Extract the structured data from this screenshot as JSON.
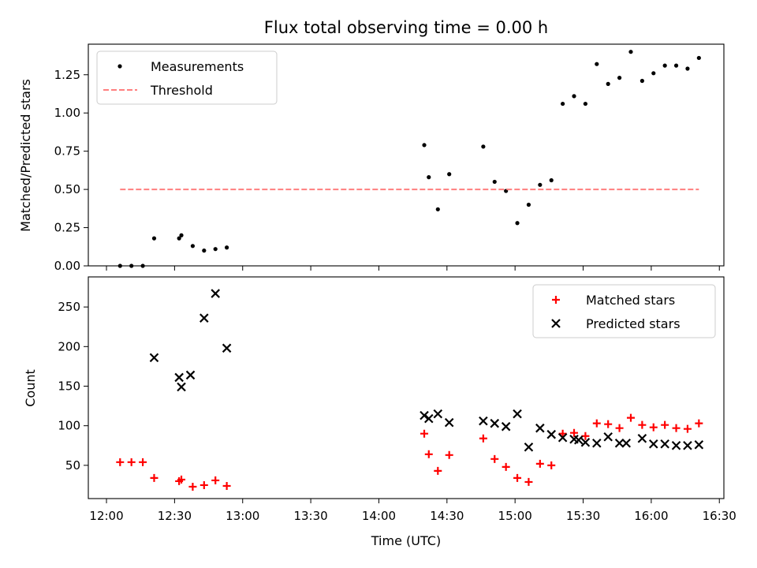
{
  "title": "Flux total observing time = 0.00 h",
  "colors": {
    "measurements": "#000000",
    "threshold": "#ff7f7f",
    "matched": "#ff0000",
    "predicted": "#000000"
  },
  "chart_data": [
    {
      "type": "scatter",
      "title": "Flux total observing time = 0.00 h",
      "xlabel": "",
      "ylabel": "Matched/Predicted stars",
      "xlim": [
        "11:52",
        "16:32"
      ],
      "ylim": [
        0,
        1.45
      ],
      "yticks": [
        "0.00",
        "0.25",
        "0.50",
        "0.75",
        "1.00",
        "1.25"
      ],
      "legend": {
        "placement": "top-left",
        "entries": [
          "Measurements",
          "Threshold"
        ]
      },
      "series": [
        {
          "name": "Measurements",
          "marker": "dot",
          "x": [
            "12:06",
            "12:11",
            "12:16",
            "12:21",
            "12:32",
            "12:33",
            "12:38",
            "12:43",
            "12:48",
            "12:53",
            "14:20",
            "14:22",
            "14:26",
            "14:31",
            "14:46",
            "14:51",
            "14:56",
            "15:01",
            "15:06",
            "15:11",
            "15:16",
            "15:21",
            "15:26",
            "15:31",
            "15:36",
            "15:41",
            "15:46",
            "15:51",
            "15:56",
            "16:01",
            "16:06",
            "16:11",
            "16:16",
            "16:21"
          ],
          "values": [
            0.0,
            0.0,
            0.0,
            0.18,
            0.18,
            0.2,
            0.13,
            0.1,
            0.11,
            0.12,
            0.79,
            0.58,
            0.37,
            0.6,
            0.78,
            0.55,
            0.49,
            0.28,
            0.4,
            0.53,
            0.56,
            1.06,
            1.11,
            1.06,
            1.32,
            1.19,
            1.23,
            1.4,
            1.21,
            1.26,
            1.31,
            1.31,
            1.29,
            1.36
          ]
        },
        {
          "name": "Threshold",
          "style": "dashed",
          "x": [
            "12:06",
            "16:21"
          ],
          "values": [
            0.5,
            0.5
          ]
        }
      ]
    },
    {
      "type": "scatter",
      "xlabel": "Time (UTC)",
      "ylabel": "Count",
      "xlim": [
        "11:52",
        "16:32"
      ],
      "ylim": [
        8,
        288
      ],
      "yticks": [
        "50",
        "100",
        "150",
        "200",
        "250"
      ],
      "xticks": [
        "12:00",
        "12:30",
        "13:00",
        "13:30",
        "14:00",
        "14:30",
        "15:00",
        "15:30",
        "16:00",
        "16:30"
      ],
      "legend": {
        "placement": "top-right",
        "entries": [
          "Matched stars",
          "Predicted stars"
        ]
      },
      "series": [
        {
          "name": "Matched stars",
          "marker": "plus",
          "x": [
            "12:06",
            "12:11",
            "12:16",
            "12:21",
            "12:32",
            "12:33",
            "12:38",
            "12:43",
            "12:48",
            "12:53",
            "14:20",
            "14:22",
            "14:26",
            "14:31",
            "14:46",
            "14:51",
            "14:56",
            "15:01",
            "15:06",
            "15:11",
            "15:16",
            "15:21",
            "15:26",
            "15:31",
            "15:36",
            "15:41",
            "15:46",
            "15:51",
            "15:56",
            "16:01",
            "16:06",
            "16:11",
            "16:16",
            "16:21"
          ],
          "values": [
            54,
            54,
            54,
            34,
            30,
            32,
            23,
            25,
            31,
            24,
            90,
            64,
            43,
            63,
            84,
            58,
            48,
            34,
            29,
            52,
            50,
            90,
            91,
            87,
            103,
            102,
            97,
            110,
            101,
            98,
            101,
            97,
            96,
            103
          ]
        },
        {
          "name": "Predicted stars",
          "marker": "x",
          "x": [
            "12:21",
            "12:32",
            "12:33",
            "12:37",
            "12:43",
            "12:48",
            "12:53",
            "14:20",
            "14:22",
            "14:26",
            "14:31",
            "14:46",
            "14:51",
            "14:56",
            "15:01",
            "15:06",
            "15:11",
            "15:16",
            "15:21",
            "15:26",
            "15:28",
            "15:31",
            "15:36",
            "15:41",
            "15:46",
            "15:49",
            "15:56",
            "16:01",
            "16:06",
            "16:11",
            "16:16",
            "16:21"
          ],
          "values": [
            186,
            161,
            149,
            164,
            236,
            267,
            198,
            113,
            109,
            115,
            104,
            106,
            103,
            99,
            115,
            73,
            97,
            89,
            85,
            83,
            82,
            79,
            78,
            86,
            78,
            78,
            84,
            77,
            77,
            75,
            75,
            76
          ]
        }
      ]
    }
  ]
}
